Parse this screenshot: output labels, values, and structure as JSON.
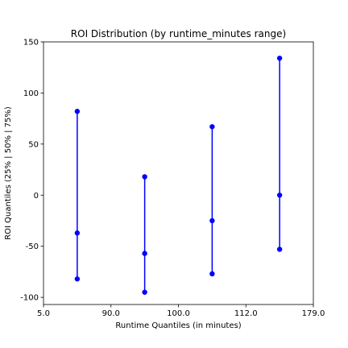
{
  "chart_data": {
    "type": "scatter",
    "title": "ROI Distribution (by runtime_minutes range)",
    "xlabel": "Runtime Quantiles (in minutes)",
    "ylabel": "ROI Quantiles (25% | 50% | 75%)",
    "x_tick_labels": [
      "5.0",
      "90.0",
      "100.0",
      "112.0",
      "179.0"
    ],
    "y_ticks": [
      -100,
      -50,
      0,
      50,
      100,
      150
    ],
    "ylim": [
      -107,
      150
    ],
    "grid": false,
    "groups": [
      {
        "q25": -82,
        "q50": -37,
        "q75": 82
      },
      {
        "q25": -95,
        "q50": -57,
        "q75": 18
      },
      {
        "q25": -77,
        "q50": -25,
        "q75": 67
      },
      {
        "q25": -53,
        "q50": 0,
        "q75": 134
      }
    ],
    "color": "#0000ff"
  }
}
